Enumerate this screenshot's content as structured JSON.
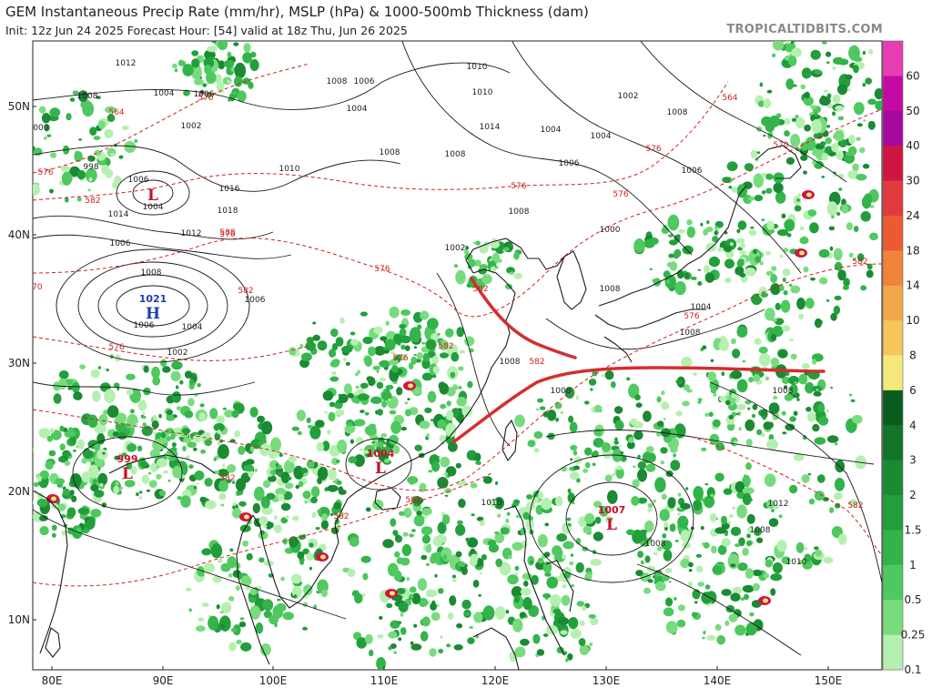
{
  "header": {
    "title": "GEM Instantaneous Precip Rate (mm/hr), MSLP (hPa) & 1000-500mb Thickness (dam)",
    "subtitle": "Init: 12z Jun 24 2025   Forecast Hour: [54]   valid at 18z Thu, Jun 26 2025",
    "brand": "TROPICALTIDBITS.COM"
  },
  "map": {
    "lat_labels": [
      "50N",
      "40N",
      "30N",
      "20N",
      "10N"
    ],
    "lon_labels": [
      "80E",
      "90E",
      "100E",
      "110E",
      "120E",
      "130E",
      "140E",
      "150E"
    ],
    "colors": {
      "land_line": "#1a1a1a",
      "thickness": "#d02020",
      "front": "#d32f2f",
      "low": "#c8102e",
      "high": "#1c3fb5"
    },
    "pressure_centers": [
      {
        "type": "L",
        "value": "",
        "symbol": "L"
      },
      {
        "type": "H",
        "value": "1021",
        "symbol": "H"
      },
      {
        "type": "L",
        "value": "999",
        "symbol": "L"
      },
      {
        "type": "L",
        "value": "1004",
        "symbol": "L"
      },
      {
        "type": "L",
        "value": "1007",
        "symbol": "L"
      }
    ],
    "isobar_labels": [
      "1012",
      "1008",
      "1004",
      "1006",
      "1002",
      "1000",
      "998",
      "1006",
      "1014",
      "1010",
      "1016",
      "1018",
      "1012",
      "1004",
      "1006",
      "1008",
      "1004",
      "1006",
      "1002",
      "1006",
      "1008",
      "1006",
      "1004",
      "1008",
      "1008",
      "1010",
      "1010",
      "1014",
      "1004",
      "1006",
      "1008",
      "1002",
      "1000",
      "1006",
      "1002",
      "1008",
      "1004",
      "1008",
      "1008",
      "1008",
      "1008",
      "1004",
      "1008",
      "1008",
      "1012",
      "1010",
      "1008",
      "1010"
    ],
    "thickness_labels": [
      "564",
      "570",
      "576",
      "582",
      "588",
      "570",
      "576",
      "582",
      "576",
      "576",
      "582",
      "576",
      "564",
      "570",
      "576",
      "582",
      "576",
      "582",
      "582",
      "576",
      "582",
      "582",
      "582",
      "576",
      "582"
    ]
  },
  "colorbar": {
    "labels": [
      "60",
      "50",
      "40",
      "30",
      "24",
      "18",
      "14",
      "10",
      "8",
      "6",
      "4",
      "3",
      "2",
      "1.5",
      "1",
      "0.5",
      "0.25",
      "0.1"
    ],
    "colors": [
      "#e63db5",
      "#c50aa4",
      "#a8089c",
      "#d11543",
      "#e23b3f",
      "#ec5a34",
      "#f0833a",
      "#f3a64a",
      "#f6c65c",
      "#f4e87a",
      "#0b5d1e",
      "#12752a",
      "#1a8a33",
      "#229f3b",
      "#33b44a",
      "#4ec85f",
      "#78dc7e",
      "#b6f0b0"
    ]
  }
}
